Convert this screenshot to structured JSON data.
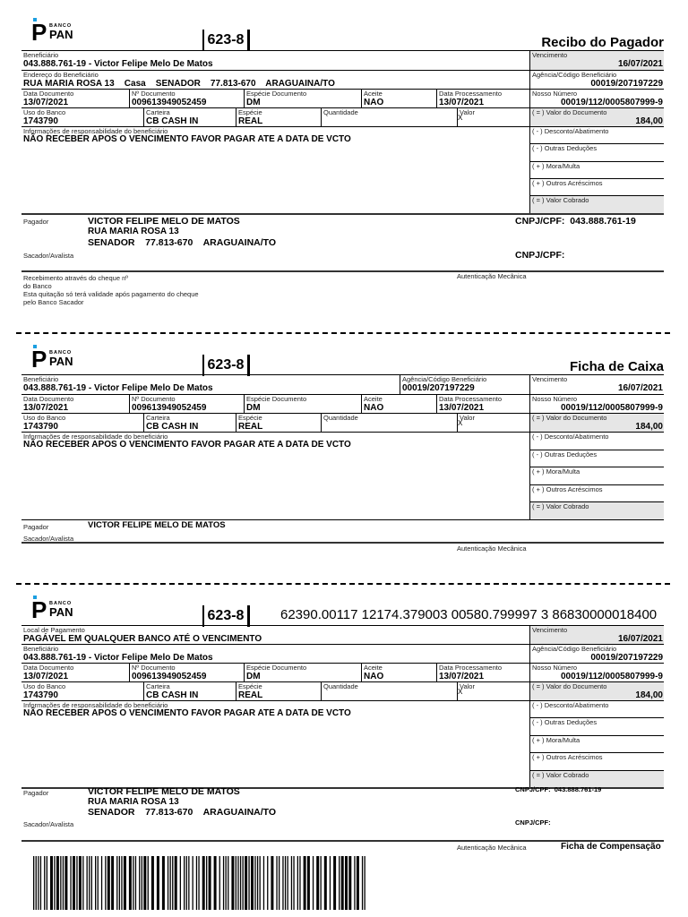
{
  "bank": {
    "logo_brand": "BANCO PAN",
    "code": "623-8"
  },
  "recibo": {
    "title": "Recibo do Pagador",
    "fields": {
      "beneficiario": {
        "label": "Beneficiário",
        "value": "043.888.761-19 - Victor Felipe Melo De Matos"
      },
      "endereco": {
        "label": "Endereço do Beneficiário",
        "value": "RUA MARIA ROSA 13    Casa    SENADOR    77.813-670    ARAGUAINA/TO"
      },
      "data_documento": {
        "label": "Data Documento",
        "value": "13/07/2021"
      },
      "numero_documento": {
        "label": "Nº Documento",
        "value": "009613949052459"
      },
      "especie_documento": {
        "label": "Espécie Documento",
        "value": "DM"
      },
      "aceite": {
        "label": "Aceite",
        "value": "NAO"
      },
      "data_processamento": {
        "label": "Data Processamento",
        "value": "13/07/2021"
      },
      "uso_banco": {
        "label": "Uso do Banco",
        "value": "1743790"
      },
      "carteira": {
        "label": "Carteira",
        "value": "CB CASH IN"
      },
      "especie": {
        "label": "Espécie",
        "value": "REAL"
      },
      "quantidade": {
        "label": "Quantidade",
        "value": ""
      },
      "valor": {
        "label": "Valor",
        "value": "X"
      },
      "informacoes": {
        "label": "Informações de responsabilidade do beneficiário",
        "value": "NÃO RECEBER APOS O VENCIMENTO  FAVOR PAGAR ATE A DATA DE VCTO"
      },
      "vencimento": {
        "label": "Vencimento",
        "value": "16/07/2021"
      },
      "agencia": {
        "label": "Agência/Código Beneficiário",
        "value": "00019/207197229"
      },
      "nosso_numero": {
        "label": "Nosso Número",
        "value": "00019/112/0005807999-9"
      },
      "valor_documento": {
        "label": "( = ) Valor do Documento",
        "value": "184,00"
      },
      "desconto": {
        "label": "( - ) Desconto/Abatimento",
        "value": ""
      },
      "outras_deducoes": {
        "label": "( - ) Outras Deduções",
        "value": ""
      },
      "mora": {
        "label": "( + ) Mora/Multa",
        "value": ""
      },
      "outros_acrescimos": {
        "label": "( + ) Outros Acréscimos",
        "value": ""
      },
      "valor_cobrado": {
        "label": "( = ) Valor Cobrado",
        "value": ""
      }
    },
    "pagador": {
      "label": "Pagador",
      "name": "VICTOR FELIPE MELO DE MATOS",
      "address1": "RUA MARIA ROSA 13",
      "address2": "SENADOR    77.813-670    ARAGUAINA/TO",
      "cnpj": "CNPJ/CPF:  043.888.761-19"
    },
    "sacador": {
      "label": "Sacador/Avalista",
      "cnpj": "CNPJ/CPF:"
    },
    "recebimento": [
      "Recebimento através do cheque nº",
      "do Banco",
      "Esta quitação só terá validade após pagamento do cheque",
      "pelo Banco Sacador"
    ],
    "autenticacao": "Autenticação Mecânica"
  },
  "caixa": {
    "title": "Ficha de Caixa",
    "fields": {
      "beneficiario": {
        "label": "Beneficiário",
        "value": "043.888.761-19 - Victor Felipe Melo De Matos"
      },
      "agencia_inline": {
        "label": "Agência/Código Beneficiário",
        "value": "00019/207197229"
      },
      "data_documento": {
        "label": "Data Documento",
        "value": "13/07/2021"
      },
      "numero_documento": {
        "label": "Nº Documento",
        "value": "009613949052459"
      },
      "especie_documento": {
        "label": "Espécie Documento",
        "value": "DM"
      },
      "aceite": {
        "label": "Aceite",
        "value": "NAO"
      },
      "data_processamento": {
        "label": "Data Processamento",
        "value": "13/07/2021"
      },
      "uso_banco": {
        "label": "Uso do Banco",
        "value": "1743790"
      },
      "carteira": {
        "label": "Carteira",
        "value": "CB CASH IN"
      },
      "especie": {
        "label": "Espécie",
        "value": "REAL"
      },
      "quantidade": {
        "label": "Quantidade",
        "value": ""
      },
      "valor": {
        "label": "Valor",
        "value": "X"
      },
      "informacoes": {
        "label": "Informações de responsabilidade do beneficiário",
        "value": "NÃO RECEBER APOS O VENCIMENTO  FAVOR PAGAR ATE A DATA DE VCTO"
      },
      "vencimento": {
        "label": "Vencimento",
        "value": "16/07/2021"
      },
      "nosso_numero": {
        "label": "Nosso Número",
        "value": "00019/112/0005807999-9"
      },
      "valor_documento": {
        "label": "( = ) Valor do Documento",
        "value": "184,00"
      },
      "desconto": {
        "label": "( - ) Desconto/Abatimento",
        "value": ""
      },
      "outras_deducoes": {
        "label": "( - ) Outras Deduções",
        "value": ""
      },
      "mora": {
        "label": "( + ) Mora/Multa",
        "value": ""
      },
      "outros_acrescimos": {
        "label": "( + ) Outros Acréscimos",
        "value": ""
      },
      "valor_cobrado": {
        "label": "( = ) Valor Cobrado",
        "value": ""
      }
    },
    "pagador": {
      "label": "Pagador",
      "name": "VICTOR FELIPE MELO DE MATOS"
    },
    "sacador": {
      "label": "Sacador/Avalista"
    },
    "autenticacao": "Autenticação Mecânica"
  },
  "compensacao": {
    "linha_digitavel": "62390.00117 12174.379003 00580.799997 3 86830000018400",
    "fields": {
      "local_pagamento": {
        "label": "Local de Pagamento",
        "value": "PAGÁVEL EM QUALQUER BANCO ATÉ O VENCIMENTO"
      },
      "beneficiario": {
        "label": "Beneficiário",
        "value": "043.888.761-19 - Victor Felipe Melo De Matos"
      },
      "data_documento": {
        "label": "Data Documento",
        "value": "13/07/2021"
      },
      "numero_documento": {
        "label": "Nº Documento",
        "value": "009613949052459"
      },
      "especie_documento": {
        "label": "Espécie Documento",
        "value": "DM"
      },
      "aceite": {
        "label": "Aceite",
        "value": "NAO"
      },
      "data_processamento": {
        "label": "Data Processamento",
        "value": "13/07/2021"
      },
      "uso_banco": {
        "label": "Uso do Banco",
        "value": "1743790"
      },
      "carteira": {
        "label": "Carteira",
        "value": "CB CASH IN"
      },
      "especie": {
        "label": "Espécie",
        "value": "REAL"
      },
      "quantidade": {
        "label": "Quantidade",
        "value": ""
      },
      "valor": {
        "label": "Valor",
        "value": "X"
      },
      "informacoes": {
        "label": "Informações de responsabilidade do beneficiário",
        "value": "NÃO RECEBER APOS O VENCIMENTO  FAVOR PAGAR ATE A DATA DE VCTO"
      },
      "vencimento": {
        "label": "Vencimento",
        "value": "16/07/2021"
      },
      "agencia": {
        "label": "Agência/Código Beneficiário",
        "value": "00019/207197229"
      },
      "nosso_numero": {
        "label": "Nosso Número",
        "value": "00019/112/0005807999-9"
      },
      "valor_documento": {
        "label": "( = ) Valor do Documento",
        "value": "184,00"
      },
      "desconto": {
        "label": "( - ) Desconto/Abatimento",
        "value": ""
      },
      "outras_deducoes": {
        "label": "( - ) Outras Deduções",
        "value": ""
      },
      "mora": {
        "label": "( + ) Mora/Multa",
        "value": ""
      },
      "outros_acrescimos": {
        "label": "( + ) Outros Acréscimos",
        "value": ""
      },
      "valor_cobrado": {
        "label": "( = ) Valor Cobrado",
        "value": ""
      }
    },
    "pagador": {
      "label": "Pagador",
      "name": "VICTOR FELIPE MELO DE MATOS",
      "address1": "RUA MARIA ROSA 13",
      "address2": "SENADOR    77.813-670    ARAGUAINA/TO",
      "cnpj": "CNPJ/CPF:  043.888.761-19"
    },
    "sacador": {
      "label": "Sacador/Avalista",
      "cnpj": "CNPJ/CPF:"
    },
    "autenticacao": "Autenticação Mecânica",
    "title": "Ficha de Compensação"
  },
  "colors": {
    "logo_accent": "#1a9ee0",
    "highlight_cell": "#e6e6e6"
  }
}
